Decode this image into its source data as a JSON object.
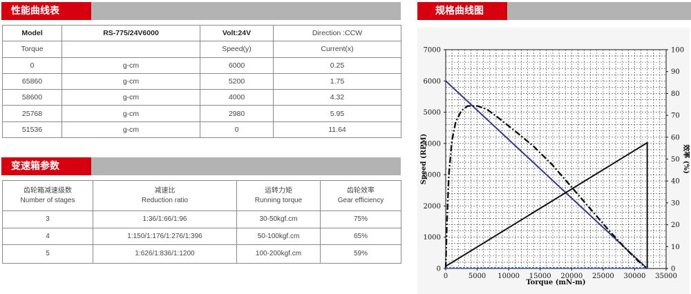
{
  "headers": {
    "performance": "性能曲线表",
    "gearbox": "变速箱参数",
    "curve": "规格曲线图"
  },
  "performance_table": {
    "model_label": "Model",
    "model_value": "RS-775/24V6000",
    "volt": "Volt:24V",
    "direction": "Direction :CCW",
    "torque_label": "Torque",
    "speed_label": "Speed(y)",
    "current_label": "Current(x)",
    "rows": [
      {
        "torque": "0",
        "unit": "g-cm",
        "speed": "6000",
        "current": "0.25"
      },
      {
        "torque": "65860",
        "unit": "g-cm",
        "speed": "5200",
        "current": "1.75"
      },
      {
        "torque": "58600",
        "unit": "g-cm",
        "speed": "4000",
        "current": "4.32"
      },
      {
        "torque": "25768",
        "unit": "g-cm",
        "speed": "2980",
        "current": "5.95"
      },
      {
        "torque": "51536",
        "unit": "g-cm",
        "speed": "0",
        "current": "11.64"
      }
    ]
  },
  "gearbox_table": {
    "headers": [
      {
        "cn": "齿轮箱减速级数",
        "en": "Number of stages"
      },
      {
        "cn": "减速比",
        "en": "Reduction ratio"
      },
      {
        "cn": "运转力矩",
        "en": "Running torque"
      },
      {
        "cn": "齿轮效率",
        "en": "Gear efficiency"
      }
    ],
    "rows": [
      {
        "stages": "3",
        "ratio": "1:36/1:66/1:96",
        "torque": "30-50kgf.cm",
        "eff": "75%"
      },
      {
        "stages": "4",
        "ratio": "1:150/1:176/1:276/1:396",
        "torque": "50-100kgf.cm",
        "eff": "65%"
      },
      {
        "stages": "5",
        "ratio": "1:626/1:836/1:1200",
        "torque": "100-200kgf.cm",
        "eff": "59%"
      }
    ]
  },
  "chart_data": {
    "type": "line",
    "xlabel": "Torque (mN-m)",
    "ylabel": "Speed (RPM)",
    "y2label": "效率 (%)",
    "xlim": [
      0,
      35000
    ],
    "ylim": [
      0,
      7000
    ],
    "y2lim": [
      0,
      100
    ],
    "x_ticks": [
      "0",
      "5000",
      "10000",
      "15000",
      "20000",
      "25000",
      "30000",
      "35000"
    ],
    "y_ticks": [
      "0",
      "1000",
      "2000",
      "3000",
      "4000",
      "5000",
      "6000",
      "7000"
    ],
    "y2_ticks": [
      "0",
      "10",
      "20",
      "30",
      "40",
      "50",
      "60",
      "70",
      "80",
      "90",
      "100"
    ],
    "grid": true,
    "series": [
      {
        "axis": "left",
        "color": "#2e3a8c",
        "style": "solid",
        "x": [
          0,
          32000
        ],
        "y": [
          6000,
          0
        ]
      },
      {
        "axis": "right",
        "color": "#111111",
        "style": "solid",
        "x": [
          0,
          32000,
          32000
        ],
        "y": [
          1,
          57.5,
          0
        ]
      },
      {
        "axis": "left",
        "color": "#111111",
        "style": "dashdot",
        "x": [
          0,
          200,
          500,
          1000,
          1600,
          2500,
          3500,
          5000,
          6500,
          8500,
          11000,
          14000,
          17000,
          20000,
          23000,
          26000,
          28500,
          30500,
          31500,
          32000
        ],
        "y": [
          0,
          1500,
          3000,
          4100,
          4700,
          5050,
          5200,
          5200,
          5100,
          4800,
          4400,
          3900,
          3300,
          2600,
          1900,
          1200,
          650,
          250,
          80,
          0
        ]
      },
      {
        "axis": "left",
        "color": "#2a5bd7",
        "style": "dashed",
        "x": [
          0,
          32000
        ],
        "y": [
          20,
          20
        ]
      }
    ]
  }
}
